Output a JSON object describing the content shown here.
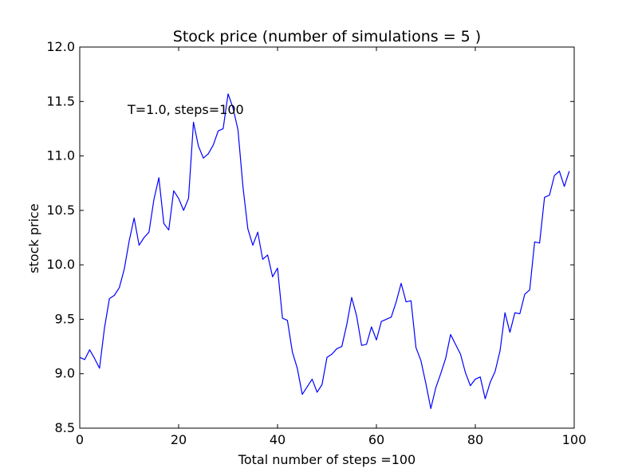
{
  "chart_data": {
    "type": "line",
    "title": "Stock price (number of simulations = 5 )",
    "xlabel": "Total number of steps =100",
    "ylabel": "stock price",
    "annotation": "T=1.0, steps=100",
    "xlim": [
      0,
      100
    ],
    "ylim": [
      8.5,
      12.0
    ],
    "xticks": [
      0,
      20,
      40,
      60,
      80,
      100
    ],
    "xtick_labels": [
      "0",
      "20",
      "40",
      "60",
      "80",
      "100"
    ],
    "yticks": [
      8.5,
      9.0,
      9.5,
      10.0,
      10.5,
      11.0,
      11.5,
      12.0
    ],
    "ytick_labels": [
      "8.5",
      "9.0",
      "9.5",
      "10.0",
      "10.5",
      "11.0",
      "11.5",
      "12.0"
    ],
    "grid": false,
    "line_color": "#0000ff",
    "series": [
      {
        "x": [
          0,
          1,
          2,
          3,
          4,
          5,
          6,
          7,
          8,
          9,
          10,
          11,
          12,
          13,
          14,
          15,
          16,
          17,
          18,
          19,
          20,
          21,
          22,
          23,
          24,
          25,
          26,
          27,
          28,
          29,
          30,
          31,
          32,
          33,
          34,
          35,
          36,
          37,
          38,
          39,
          40,
          41,
          42,
          43,
          44,
          45,
          46,
          47,
          48,
          49,
          50,
          51,
          52,
          53,
          54,
          55,
          56,
          57,
          58,
          59,
          60,
          61,
          62,
          63,
          64,
          65,
          66,
          67,
          68,
          69,
          70,
          71,
          72,
          73,
          74,
          75,
          76,
          77,
          78,
          79,
          80,
          81,
          82,
          83,
          84,
          85,
          86,
          87,
          88,
          89,
          90,
          91,
          92,
          93,
          94,
          95,
          96,
          97,
          98,
          99
        ],
        "values": [
          9.15,
          9.13,
          9.22,
          9.14,
          9.05,
          9.42,
          9.69,
          9.72,
          9.79,
          9.96,
          10.22,
          10.43,
          10.18,
          10.25,
          10.3,
          10.6,
          10.8,
          10.38,
          10.32,
          10.68,
          10.61,
          10.5,
          10.61,
          11.31,
          11.09,
          10.98,
          11.02,
          11.1,
          11.23,
          11.25,
          11.57,
          11.44,
          11.24,
          10.72,
          10.33,
          10.18,
          10.3,
          10.05,
          10.09,
          9.89,
          9.97,
          9.51,
          9.49,
          9.2,
          9.05,
          8.81,
          8.88,
          8.95,
          8.83,
          8.9,
          9.15,
          9.18,
          9.23,
          9.25,
          9.45,
          9.7,
          9.53,
          9.26,
          9.27,
          9.43,
          9.31,
          9.48,
          9.5,
          9.52,
          9.66,
          9.83,
          9.66,
          9.67,
          9.24,
          9.12,
          8.91,
          8.68,
          8.87,
          9.0,
          9.14,
          9.36,
          9.27,
          9.18,
          9.01,
          8.89,
          8.95,
          8.97,
          8.77,
          8.92,
          9.02,
          9.21,
          9.56,
          9.38,
          9.56,
          9.55,
          9.73,
          9.77,
          10.21,
          10.2,
          10.62,
          10.64,
          10.82,
          10.86,
          10.72,
          10.86
        ]
      }
    ]
  }
}
